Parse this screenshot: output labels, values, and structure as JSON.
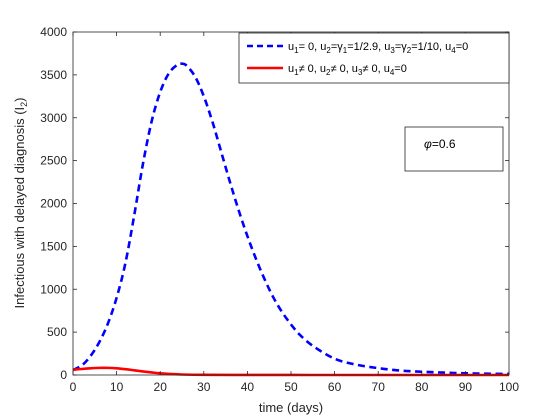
{
  "chart_data": {
    "type": "line",
    "xlabel": "time (days)",
    "ylabel": "Infectious with delayed diagnosis (I",
    "ylabel_sub": "2",
    "ylabel_close": ")",
    "xlim": [
      0,
      100
    ],
    "ylim": [
      0,
      4000
    ],
    "xticks": [
      0,
      10,
      20,
      30,
      40,
      50,
      60,
      70,
      80,
      90,
      100
    ],
    "yticks": [
      0,
      500,
      1000,
      1500,
      2000,
      2500,
      3000,
      3500,
      4000
    ],
    "grid": false,
    "legend_position": "top-right",
    "annotation": {
      "symbol": "φ",
      "text": "=0.6"
    },
    "series": [
      {
        "legend": [
          {
            "t": "u",
            "s": ""
          },
          {
            "t": "1",
            "s": "sub"
          },
          {
            "t": "= 0, u",
            "s": ""
          },
          {
            "t": "2",
            "s": "sub"
          },
          {
            "t": "=γ",
            "s": ""
          },
          {
            "t": "1",
            "s": "sub"
          },
          {
            "t": "=1/2.9, u",
            "s": ""
          },
          {
            "t": "3",
            "s": "sub"
          },
          {
            "t": "=γ",
            "s": ""
          },
          {
            "t": "2",
            "s": "sub"
          },
          {
            "t": "=1/10, u",
            "s": ""
          },
          {
            "t": "4",
            "s": "sub"
          },
          {
            "t": "=0",
            "s": ""
          }
        ],
        "color": "#0000ff",
        "style": "dashed",
        "x": [
          0,
          2,
          4,
          6,
          8,
          10,
          12,
          14,
          16,
          18,
          20,
          22,
          24,
          25,
          26,
          28,
          30,
          32,
          34,
          36,
          38,
          40,
          42,
          44,
          46,
          48,
          50,
          52,
          55,
          60,
          65,
          70,
          75,
          80,
          85,
          90,
          95,
          100
        ],
        "y": [
          60,
          110,
          220,
          380,
          600,
          900,
          1300,
          1850,
          2450,
          2950,
          3300,
          3520,
          3620,
          3630,
          3610,
          3480,
          3250,
          2950,
          2600,
          2250,
          1920,
          1620,
          1350,
          1110,
          900,
          730,
          590,
          470,
          340,
          190,
          120,
          80,
          52,
          38,
          28,
          20,
          15,
          12
        ]
      },
      {
        "legend": [
          {
            "t": "u",
            "s": ""
          },
          {
            "t": "1",
            "s": "sub"
          },
          {
            "t": "≠ 0, u",
            "s": ""
          },
          {
            "t": "2",
            "s": "sub"
          },
          {
            "t": "≠ 0, u",
            "s": ""
          },
          {
            "t": "3",
            "s": "sub"
          },
          {
            "t": "≠ 0, u",
            "s": ""
          },
          {
            "t": "4",
            "s": "sub"
          },
          {
            "t": "=0",
            "s": ""
          }
        ],
        "color": "#ff0000",
        "style": "solid",
        "x": [
          0,
          2,
          4,
          6,
          8,
          10,
          12,
          14,
          16,
          18,
          20,
          22,
          25,
          30,
          40,
          50,
          60,
          70,
          80,
          90,
          100
        ],
        "y": [
          60,
          70,
          78,
          83,
          83,
          78,
          68,
          55,
          42,
          30,
          20,
          12,
          6,
          2,
          0.5,
          0.2,
          0.1,
          0,
          0,
          0,
          0
        ]
      }
    ]
  }
}
